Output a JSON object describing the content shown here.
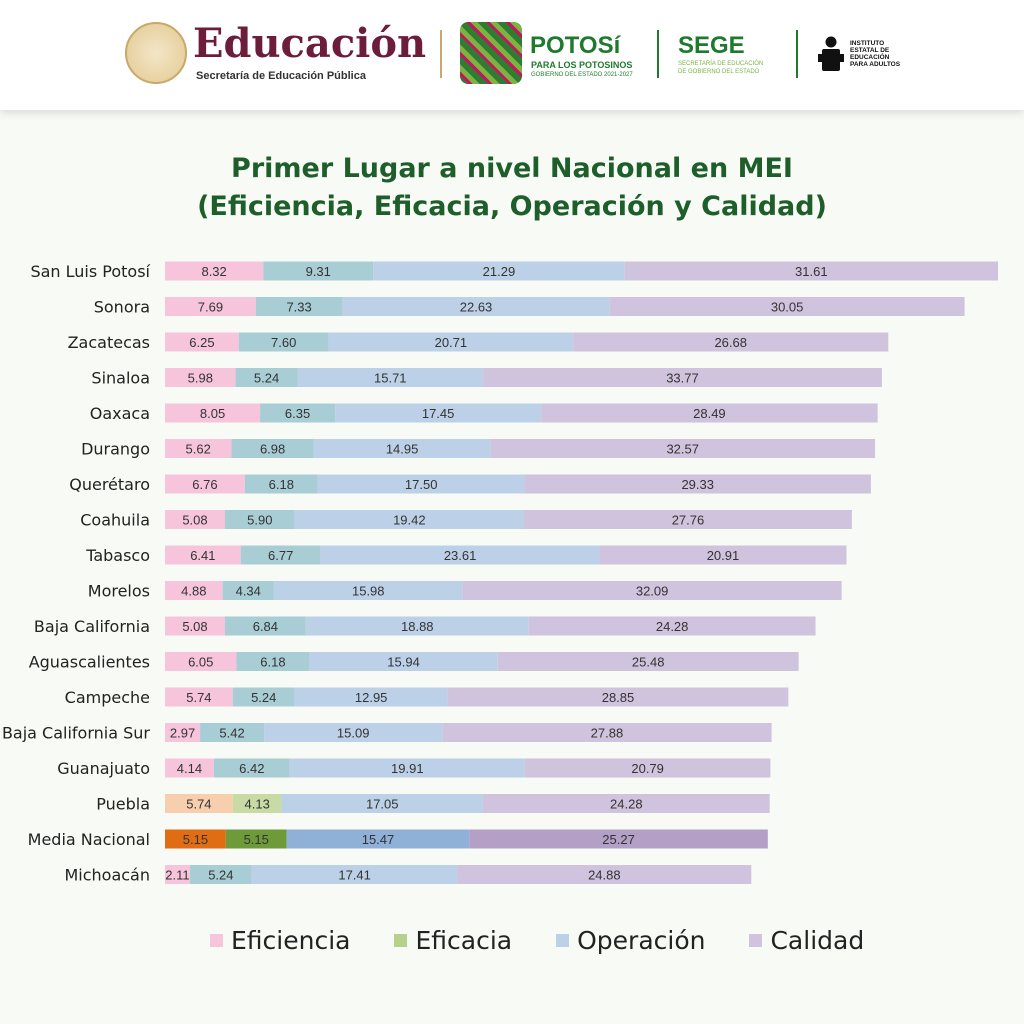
{
  "header": {
    "sep_title": "Educación",
    "sep_subtitle": "Secretaría de Educación Pública",
    "potosi_title": "POTOSí",
    "potosi_subtitle": "PARA LOS POTOSINOS",
    "potosi_period": "GOBIERNO DEL ESTADO 2021-2027",
    "sege_title": "SEGE",
    "sege_subtitle_1": "SECRETARÍA DE EDUCACIÓN",
    "sege_subtitle_2": "DE GOBIERNO DEL ESTADO",
    "ieea_1": "INSTITUTO",
    "ieea_2": "ESTATAL DE",
    "ieea_3": "EDUCACIÓN",
    "ieea_4": "PARA ADULTOS"
  },
  "chart_data": {
    "type": "bar",
    "orientation": "horizontal",
    "stacked": true,
    "title_line1": "Primer Lugar a nivel Nacional en MEI",
    "title_line2": "(Eficiencia, Eficacia, Operación y Calidad)",
    "legend_placement": "bottom",
    "grid": false,
    "categories": [
      "San Luis Potosí",
      "Sonora",
      "Zacatecas",
      "Sinaloa",
      "Oaxaca",
      "Durango",
      "Querétaro",
      "Coahuila",
      "Tabasco",
      "Morelos",
      "Baja California",
      "Aguascalientes",
      "Campeche",
      "Baja California Sur",
      "Guanajuato",
      "Puebla",
      "Media Nacional",
      "Michoacán"
    ],
    "series": [
      {
        "name": "Eficiencia",
        "color": "#f7c5db",
        "values": [
          8.32,
          7.69,
          6.25,
          5.98,
          8.05,
          5.62,
          6.76,
          5.08,
          6.41,
          4.88,
          5.08,
          6.05,
          5.74,
          2.97,
          4.14,
          5.74,
          5.15,
          2.11
        ]
      },
      {
        "name": "Eficacia",
        "color": "#a8cdd5",
        "legend_color": "#b5d18c",
        "values": [
          9.31,
          7.33,
          7.6,
          5.24,
          6.35,
          6.98,
          6.18,
          5.9,
          6.77,
          4.34,
          6.84,
          6.18,
          5.24,
          5.42,
          6.42,
          4.13,
          5.15,
          5.24
        ]
      },
      {
        "name": "Operación",
        "color": "#bcd1e7",
        "values": [
          21.29,
          22.63,
          20.71,
          15.71,
          17.45,
          14.95,
          17.5,
          19.42,
          23.61,
          15.98,
          18.88,
          15.94,
          12.95,
          15.09,
          19.91,
          17.05,
          15.47,
          17.41
        ]
      },
      {
        "name": "Calidad",
        "color": "#d0c3dd",
        "values": [
          31.61,
          30.05,
          26.68,
          33.77,
          28.49,
          32.57,
          29.33,
          27.76,
          20.91,
          32.09,
          24.28,
          25.48,
          28.85,
          27.88,
          20.79,
          24.28,
          25.27,
          24.88
        ]
      }
    ],
    "highlight_colors": {
      "Puebla": [
        "#f8cfae",
        "#c8dba5",
        "#bcd1e7",
        "#d0c3dd"
      ],
      "Media Nacional": [
        "#e06c14",
        "#6e9a3a",
        "#8fb0d7",
        "#b49fc6"
      ]
    }
  }
}
